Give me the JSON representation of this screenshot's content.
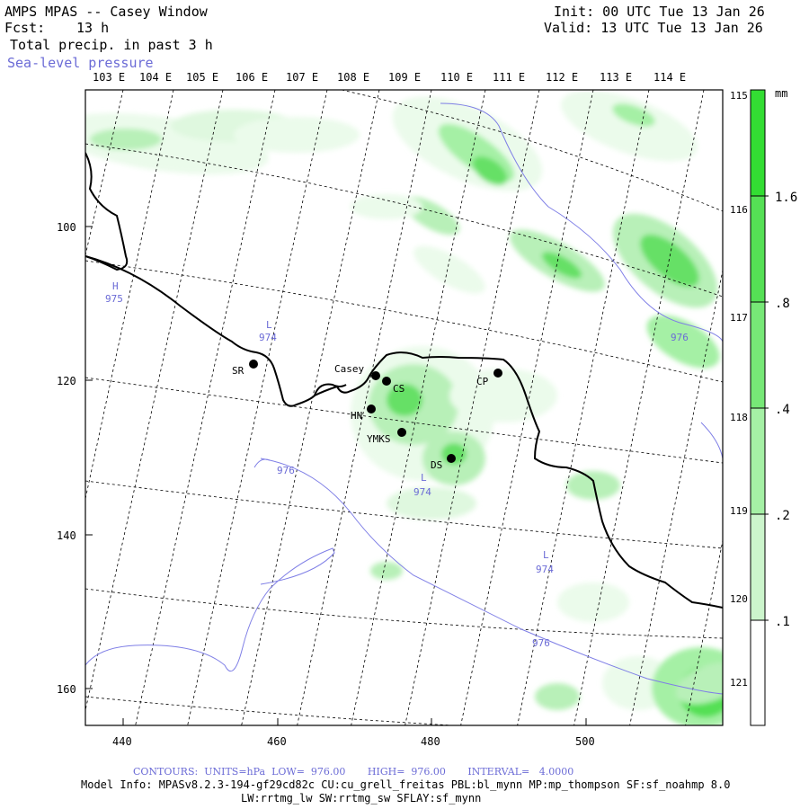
{
  "header": {
    "title": "AMPS MPAS -- Casey Window",
    "fcst_label": "Fcst:",
    "fcst_value": "13 h",
    "field": "Total precip. in past 3 h",
    "overlay": "Sea-level pressure",
    "init": "Init: 00 UTC Tue 13 Jan 26",
    "valid": "Valid: 13 UTC Tue 13 Jan 26"
  },
  "map": {
    "top_lon_labels": [
      "103 E",
      "104 E",
      "105 E",
      "106 E",
      "107 E",
      "108 E",
      "109 E",
      "110 E",
      "111 E",
      "112 E",
      "113 E",
      "114 E"
    ],
    "right_lon_labels": [
      "115 E",
      "116 E",
      "117 E",
      "118 E",
      "119 E",
      "120 E",
      "121 E"
    ],
    "y_ticks": [
      "100",
      "120",
      "140",
      "160"
    ],
    "x_ticks": [
      "440",
      "460",
      "480",
      "500"
    ],
    "stations": [
      {
        "id": "SR",
        "label": "SR"
      },
      {
        "id": "Casey",
        "label": "Casey"
      },
      {
        "id": "CS",
        "label": "CS"
      },
      {
        "id": "HN",
        "label": "HN"
      },
      {
        "id": "YMKS",
        "label": "YMKS"
      },
      {
        "id": "DS",
        "label": "DS"
      },
      {
        "id": "CP",
        "label": "CP"
      }
    ],
    "pressure_centers": [
      {
        "type": "H",
        "value": "975"
      },
      {
        "type": "L",
        "value": "974"
      },
      {
        "type": "L",
        "value": "974"
      },
      {
        "type": "L",
        "value": "974"
      }
    ],
    "isobar_labels": [
      "976",
      "976",
      "976"
    ],
    "colors": {
      "coast": "#000000",
      "isobar": "#7f7fe6",
      "grid": "#000000",
      "precip_light": "#e8fae8",
      "precip_mid": "#b8f0b8",
      "precip_high": "#66e066",
      "precip_max": "#33cc33"
    }
  },
  "colorbar": {
    "unit": "mm",
    "labels": [
      "1.6",
      ".8",
      ".4",
      ".2",
      ".1"
    ],
    "colors": [
      "#33dd33",
      "#55e055",
      "#77e877",
      "#a5f0a5",
      "#ccf5cc",
      "#ebfbeb",
      "#ffffff"
    ]
  },
  "footer": {
    "contours": "CONTOURS:  UNITS=hPa  LOW=  976.00       HIGH=  976.00       INTERVAL=   4.0000",
    "model_info_1": "Model Info: MPASv8.2.3-194-gf29cd82c CU:cu_grell_freitas PBL:bl_mynn MP:mp_thompson SF:sf_noahmp 8.0",
    "model_info_2": "LW:rrtmg_lw SW:rrtmg_sw SFLAY:sf_mynn"
  }
}
